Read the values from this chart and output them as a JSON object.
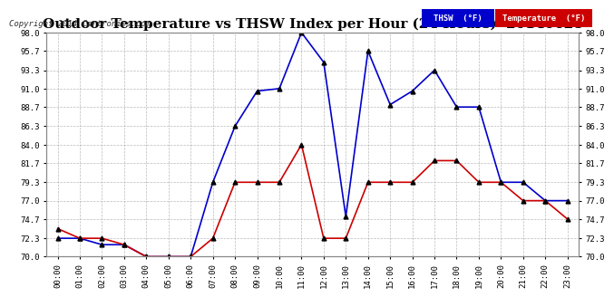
{
  "title": "Outdoor Temperature vs THSW Index per Hour (24 Hours)  20140628",
  "copyright": "Copyright 2014 Cartronics.com",
  "hours": [
    "00:00",
    "01:00",
    "02:00",
    "03:00",
    "04:00",
    "05:00",
    "06:00",
    "07:00",
    "08:00",
    "09:00",
    "10:00",
    "11:00",
    "12:00",
    "13:00",
    "14:00",
    "15:00",
    "16:00",
    "17:00",
    "18:00",
    "19:00",
    "20:00",
    "21:00",
    "22:00",
    "23:00"
  ],
  "thsw": [
    72.3,
    72.3,
    71.5,
    71.5,
    70.0,
    70.0,
    70.0,
    79.3,
    86.3,
    90.7,
    91.0,
    98.0,
    94.3,
    75.0,
    95.7,
    89.0,
    90.7,
    93.3,
    88.7,
    88.7,
    79.3,
    79.3,
    77.0,
    77.0
  ],
  "temperature": [
    73.5,
    72.3,
    72.3,
    71.5,
    70.0,
    70.0,
    70.0,
    72.3,
    79.3,
    79.3,
    79.3,
    84.0,
    72.3,
    72.3,
    79.3,
    79.3,
    79.3,
    82.0,
    82.0,
    79.3,
    79.3,
    77.0,
    77.0,
    74.7
  ],
  "ylim": [
    70.0,
    98.0
  ],
  "yticks": [
    70.0,
    72.3,
    74.7,
    77.0,
    79.3,
    81.7,
    84.0,
    86.3,
    88.7,
    91.0,
    93.3,
    95.7,
    98.0
  ],
  "thsw_color": "#0000cc",
  "temp_color": "#cc0000",
  "marker_color": "#000000",
  "bg_color": "#ffffff",
  "grid_color": "#aaaaaa",
  "title_fontsize": 11,
  "legend_thsw_bg": "#0000cc",
  "legend_temp_bg": "#cc0000"
}
